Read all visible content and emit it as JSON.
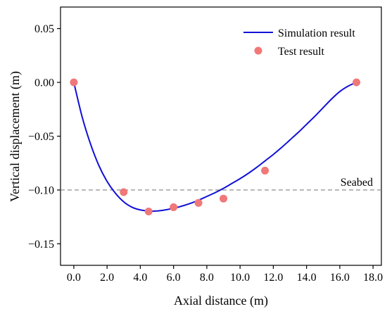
{
  "chart_data": {
    "type": "line",
    "title": "",
    "xlabel": "Axial distance (m)",
    "ylabel": "Vertical displacement (m)",
    "xlim": [
      -0.8,
      18.5
    ],
    "ylim": [
      -0.17,
      0.07
    ],
    "x_ticks": [
      0,
      2,
      4,
      6,
      8,
      10,
      12,
      14,
      16,
      18
    ],
    "x_tick_labels": [
      "0.0",
      "2.0",
      "4.0",
      "6.0",
      "8.0",
      "10.0",
      "12.0",
      "14.0",
      "16.0",
      "18.0"
    ],
    "y_ticks": [
      0.05,
      0,
      -0.05,
      -0.1,
      -0.15
    ],
    "y_tick_labels": [
      "0.05",
      "0.00",
      "−0.05",
      "−0.10",
      "−0.15"
    ],
    "grid": false,
    "legend_position": "top-right",
    "series": [
      {
        "name": "Simulation result",
        "kind": "line",
        "color": "#1010d8",
        "x": [
          0,
          0.5,
          1,
          1.5,
          2,
          2.5,
          3,
          3.5,
          4,
          4.5,
          5,
          5.5,
          6,
          6.5,
          7,
          7.5,
          8,
          8.5,
          9,
          9.5,
          10,
          10.5,
          11,
          11.5,
          12,
          12.5,
          13,
          13.5,
          14,
          14.5,
          15,
          15.5,
          16,
          16.5,
          17
        ],
        "y": [
          0,
          -0.032,
          -0.057,
          -0.077,
          -0.092,
          -0.103,
          -0.111,
          -0.116,
          -0.1185,
          -0.1195,
          -0.1195,
          -0.1185,
          -0.117,
          -0.115,
          -0.1125,
          -0.1095,
          -0.106,
          -0.1025,
          -0.0985,
          -0.094,
          -0.0895,
          -0.0845,
          -0.079,
          -0.073,
          -0.067,
          -0.0605,
          -0.0535,
          -0.0465,
          -0.039,
          -0.0315,
          -0.0235,
          -0.0155,
          -0.0085,
          -0.0035,
          0
        ]
      },
      {
        "name": "Test result",
        "kind": "scatter",
        "color": "#f07878",
        "x": [
          0,
          3,
          4.5,
          6,
          7.5,
          9,
          11.5,
          17
        ],
        "y": [
          0,
          -0.102,
          -0.12,
          -0.116,
          -0.112,
          -0.108,
          -0.082,
          0
        ]
      }
    ],
    "reference_lines": [
      {
        "y": -0.1,
        "label": "Seabed",
        "style": "dashed",
        "color": "#808080"
      }
    ]
  }
}
